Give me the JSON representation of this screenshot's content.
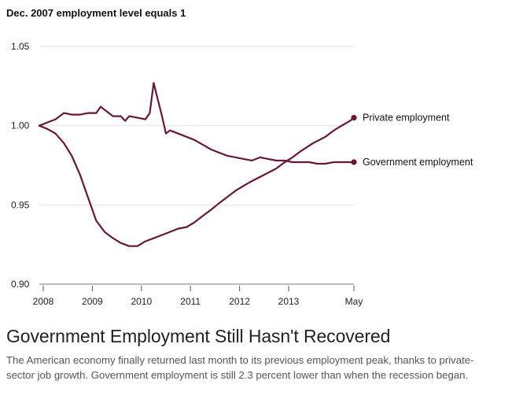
{
  "headline": "Government Employment Still Hasn't Recovered",
  "caption": "The American economy finally returned last month to its previous employment peak, thanks to private-sector job growth. Government employment is still 2.3 percent lower than when the recession began.",
  "chart_data": {
    "type": "line",
    "subtitle": "Dec. 2007 employment level equals 1",
    "ylim": [
      0.9,
      1.05
    ],
    "y_ticks": [
      {
        "value": 1.05,
        "label": "1.05"
      },
      {
        "value": 1.0,
        "label": "1.00"
      },
      {
        "value": 0.95,
        "label": "0.95"
      },
      {
        "value": 0.9,
        "label": "0.90"
      }
    ],
    "xlim": [
      2007.92,
      2014.33
    ],
    "x_ticks": [
      {
        "value": 2008.0,
        "label": "2008"
      },
      {
        "value": 2009.0,
        "label": "2009"
      },
      {
        "value": 2010.0,
        "label": "2010"
      },
      {
        "value": 2011.0,
        "label": "2011"
      },
      {
        "value": 2012.0,
        "label": "2012"
      },
      {
        "value": 2013.0,
        "label": "2013"
      },
      {
        "value": 2014.33,
        "label": "May"
      }
    ],
    "grid": true,
    "series": [
      {
        "name": "Private employment",
        "color": "#6b1638",
        "x": [
          2007.92,
          2008.08,
          2008.25,
          2008.42,
          2008.58,
          2008.75,
          2008.92,
          2009.08,
          2009.25,
          2009.42,
          2009.58,
          2009.75,
          2009.92,
          2010.08,
          2010.25,
          2010.5,
          2010.75,
          2010.92,
          2011.08,
          2011.25,
          2011.42,
          2011.58,
          2011.75,
          2011.92,
          2012.08,
          2012.25,
          2012.5,
          2012.75,
          2012.92,
          2013.08,
          2013.25,
          2013.5,
          2013.75,
          2013.92,
          2014.08,
          2014.25,
          2014.33
        ],
        "values": [
          1.0,
          0.998,
          0.995,
          0.989,
          0.981,
          0.969,
          0.954,
          0.94,
          0.933,
          0.929,
          0.926,
          0.924,
          0.924,
          0.927,
          0.929,
          0.932,
          0.935,
          0.936,
          0.939,
          0.943,
          0.947,
          0.951,
          0.955,
          0.959,
          0.962,
          0.965,
          0.969,
          0.973,
          0.977,
          0.98,
          0.984,
          0.989,
          0.993,
          0.997,
          1.0,
          1.003,
          1.005
        ]
      },
      {
        "name": "Government employment",
        "color": "#6b1638",
        "x": [
          2007.92,
          2008.08,
          2008.25,
          2008.42,
          2008.58,
          2008.75,
          2008.92,
          2009.0,
          2009.08,
          2009.17,
          2009.25,
          2009.42,
          2009.58,
          2009.67,
          2009.75,
          2009.92,
          2010.08,
          2010.17,
          2010.25,
          2010.33,
          2010.42,
          2010.5,
          2010.58,
          2010.67,
          2010.75,
          2010.92,
          2011.08,
          2011.25,
          2011.42,
          2011.58,
          2011.75,
          2011.92,
          2012.08,
          2012.25,
          2012.42,
          2012.58,
          2012.75,
          2012.92,
          2013.08,
          2013.25,
          2013.42,
          2013.58,
          2013.75,
          2013.92,
          2014.08,
          2014.25,
          2014.33
        ],
        "values": [
          1.0,
          1.002,
          1.004,
          1.008,
          1.007,
          1.007,
          1.008,
          1.008,
          1.008,
          1.012,
          1.01,
          1.006,
          1.006,
          1.003,
          1.006,
          1.005,
          1.004,
          1.008,
          1.027,
          1.017,
          1.006,
          0.995,
          0.997,
          0.996,
          0.995,
          0.993,
          0.991,
          0.988,
          0.985,
          0.983,
          0.981,
          0.98,
          0.979,
          0.978,
          0.98,
          0.979,
          0.978,
          0.978,
          0.977,
          0.977,
          0.977,
          0.976,
          0.976,
          0.977,
          0.977,
          0.977,
          0.977
        ]
      }
    ]
  }
}
